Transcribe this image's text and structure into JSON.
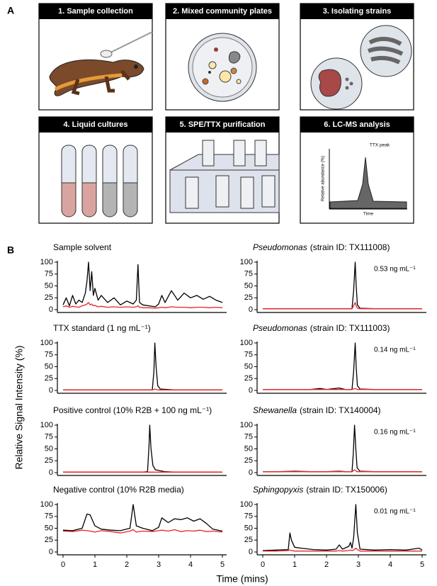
{
  "panel_a": {
    "label": "A",
    "steps": [
      "1. Sample collection",
      "2. Mixed community plates",
      "3. Isolating strains",
      "4. Liquid cultures",
      "5. SPE/TTX purification",
      "6. LC-MS analysis"
    ],
    "inset": {
      "y_label": "Relative abundance (%)",
      "peak_label": "TTX peak",
      "x_label": "Time"
    }
  },
  "panel_b": {
    "label": "B",
    "y_label": "Relative Signal Intensity (%)",
    "x_label": "Time (mins)"
  },
  "chart_data": [
    {
      "type": "line",
      "title": "Sample solvent",
      "x": [
        0,
        0.1,
        0.2,
        0.3,
        0.4,
        0.5,
        0.6,
        0.7,
        0.75,
        0.8,
        0.85,
        0.9,
        0.95,
        1.0,
        1.1,
        1.2,
        1.4,
        1.6,
        1.8,
        2.0,
        2.2,
        2.3,
        2.35,
        2.4,
        2.5,
        2.7,
        2.9,
        3.0,
        3.1,
        3.2,
        3.4,
        3.6,
        3.8,
        4.0,
        4.2,
        4.4,
        4.6,
        4.8,
        5.0
      ],
      "series": [
        {
          "color": "#000000",
          "values": [
            10,
            25,
            8,
            30,
            12,
            20,
            15,
            35,
            60,
            100,
            40,
            80,
            30,
            45,
            20,
            30,
            15,
            25,
            10,
            18,
            12,
            20,
            95,
            15,
            10,
            8,
            6,
            12,
            30,
            15,
            40,
            20,
            35,
            25,
            30,
            22,
            28,
            20,
            15
          ]
        },
        {
          "color": "#e8232a",
          "values": [
            6,
            8,
            5,
            7,
            6,
            5,
            8,
            10,
            12,
            15,
            10,
            12,
            8,
            9,
            6,
            7,
            5,
            6,
            5,
            6,
            5,
            6,
            8,
            5,
            4,
            4,
            3,
            4,
            5,
            4,
            6,
            5,
            5,
            4,
            5,
            5,
            4,
            5,
            4
          ]
        }
      ],
      "xlim": [
        0,
        5
      ],
      "ylim": [
        0,
        100
      ],
      "yticks": [
        0,
        25,
        50,
        75,
        100
      ]
    },
    {
      "type": "line",
      "title": "TTX standard (1 ng mL⁻¹)",
      "x": [
        0,
        0.5,
        1,
        1.5,
        2,
        2.5,
        2.8,
        2.85,
        2.88,
        2.92,
        2.97,
        3.05,
        3.5,
        4,
        4.5,
        5
      ],
      "series": [
        {
          "color": "#000000",
          "values": [
            1,
            1,
            1,
            1,
            1,
            1,
            1,
            40,
            100,
            50,
            10,
            3,
            1,
            1,
            1,
            1
          ]
        },
        {
          "color": "#e8232a",
          "values": [
            1,
            1,
            1,
            1,
            1,
            1,
            1,
            2,
            3,
            2,
            1,
            1,
            1,
            1,
            1,
            1
          ]
        }
      ],
      "xlim": [
        0,
        5
      ],
      "ylim": [
        0,
        100
      ],
      "yticks": [
        0,
        25,
        50,
        75,
        100
      ]
    },
    {
      "type": "line",
      "title": "Positive control (10% R2B + 100 ng mL⁻¹)",
      "x": [
        0,
        0.5,
        1,
        1.5,
        2,
        2.5,
        2.65,
        2.7,
        2.72,
        2.76,
        2.82,
        2.9,
        3.2,
        3.5,
        4,
        4.5,
        5
      ],
      "series": [
        {
          "color": "#000000",
          "values": [
            1,
            1,
            1,
            1,
            1,
            1,
            2,
            60,
            100,
            50,
            15,
            6,
            2,
            1,
            1,
            1,
            1
          ]
        },
        {
          "color": "#e8232a",
          "values": [
            1,
            1,
            1,
            1,
            1,
            1,
            1,
            1,
            1,
            1,
            1,
            1,
            1,
            1,
            1,
            1,
            1
          ]
        }
      ],
      "xlim": [
        0,
        5
      ],
      "ylim": [
        0,
        100
      ],
      "yticks": [
        0,
        25,
        50,
        75,
        100
      ]
    },
    {
      "type": "line",
      "title": "Negative control (10% R2B media)",
      "x": [
        0,
        0.3,
        0.6,
        0.75,
        0.85,
        1.0,
        1.2,
        1.5,
        1.8,
        2.1,
        2.2,
        2.3,
        2.5,
        2.8,
        3.0,
        3.1,
        3.3,
        3.5,
        3.7,
        3.9,
        4.1,
        4.3,
        4.5,
        4.7,
        5.0
      ],
      "series": [
        {
          "color": "#000000",
          "values": [
            46,
            45,
            50,
            80,
            78,
            55,
            48,
            46,
            45,
            50,
            100,
            55,
            50,
            45,
            52,
            72,
            62,
            70,
            68,
            72,
            65,
            70,
            60,
            48,
            44
          ]
        },
        {
          "color": "#e8232a",
          "values": [
            44,
            43,
            46,
            45,
            44,
            42,
            45,
            43,
            40,
            44,
            47,
            42,
            44,
            43,
            45,
            46,
            44,
            47,
            43,
            45,
            44,
            46,
            43,
            44,
            42
          ]
        }
      ],
      "xlim": [
        0,
        5
      ],
      "ylim": [
        0,
        100
      ],
      "yticks": [
        0,
        25,
        50,
        75,
        100
      ],
      "xticks": [
        0,
        1,
        2,
        3,
        4,
        5
      ]
    },
    {
      "type": "line",
      "title_italic": "Pseudomonas",
      "title": "(strain ID: TX111008)",
      "annotation": "0.53 ng mL⁻¹",
      "x": [
        0,
        0.5,
        1,
        1.5,
        2,
        2.5,
        2.8,
        2.85,
        2.9,
        2.93,
        2.97,
        3.05,
        3.5,
        4,
        4.5,
        5
      ],
      "series": [
        {
          "color": "#000000",
          "values": [
            2,
            2,
            2,
            2,
            2,
            2,
            2,
            40,
            100,
            50,
            10,
            3,
            2,
            2,
            2,
            2
          ]
        },
        {
          "color": "#e8232a",
          "values": [
            2,
            2,
            2,
            2,
            2,
            2,
            2,
            8,
            15,
            8,
            3,
            2,
            2,
            2,
            2,
            2
          ]
        }
      ],
      "xlim": [
        0,
        5
      ],
      "ylim": [
        0,
        100
      ],
      "yticks": [
        0,
        25,
        50,
        75,
        100
      ]
    },
    {
      "type": "line",
      "title_italic": "Pseudomonas",
      "title": "(strain ID: TX111003)",
      "annotation": "0.14 ng mL⁻¹",
      "x": [
        0,
        0.5,
        1,
        1.5,
        1.8,
        2,
        2.4,
        2.6,
        2.8,
        2.85,
        2.9,
        2.93,
        2.97,
        3.05,
        3.5,
        4,
        4.5,
        5
      ],
      "series": [
        {
          "color": "#000000",
          "values": [
            2,
            2,
            2,
            2,
            4,
            2,
            5,
            2,
            2,
            40,
            100,
            50,
            10,
            3,
            2,
            2,
            2,
            2
          ]
        },
        {
          "color": "#e8232a",
          "values": [
            2,
            2,
            2,
            2,
            2,
            2,
            2,
            2,
            2,
            3,
            4,
            3,
            2,
            2,
            2,
            2,
            2,
            2
          ]
        }
      ],
      "xlim": [
        0,
        5
      ],
      "ylim": [
        0,
        100
      ],
      "yticks": [
        0,
        25,
        50,
        75,
        100
      ]
    },
    {
      "type": "line",
      "title_italic": "Shewanella",
      "title": "(strain ID: TX140004)",
      "annotation": "0.16 ng mL⁻¹",
      "x": [
        0,
        0.5,
        1,
        1.5,
        2,
        2.4,
        2.6,
        2.8,
        2.84,
        2.88,
        2.92,
        2.96,
        3.05,
        3.5,
        4,
        4.5,
        5
      ],
      "series": [
        {
          "color": "#000000",
          "values": [
            2,
            2,
            3,
            2,
            2,
            3,
            2,
            2,
            40,
            100,
            50,
            10,
            3,
            2,
            2,
            2,
            2
          ]
        },
        {
          "color": "#e8232a",
          "values": [
            2,
            2,
            2,
            2,
            2,
            2,
            2,
            2,
            4,
            6,
            4,
            2,
            2,
            2,
            2,
            2,
            2
          ]
        }
      ],
      "xlim": [
        0,
        5
      ],
      "ylim": [
        0,
        100
      ],
      "yticks": [
        0,
        25,
        50,
        75,
        100
      ]
    },
    {
      "type": "line",
      "title_italic": "Sphingopyxis",
      "title": "(strain ID: TX150006)",
      "annotation": "0.01 ng mL⁻¹",
      "x": [
        0,
        0.4,
        0.8,
        0.85,
        0.9,
        1.0,
        1.2,
        1.6,
        2.0,
        2.3,
        2.4,
        2.5,
        2.7,
        2.75,
        2.8,
        2.85,
        2.92,
        2.97,
        3.05,
        3.5,
        4,
        4.5,
        4.9,
        5
      ],
      "series": [
        {
          "color": "#000000",
          "values": [
            3,
            4,
            5,
            40,
            25,
            10,
            8,
            5,
            4,
            6,
            15,
            6,
            12,
            20,
            8,
            30,
            100,
            40,
            6,
            4,
            5,
            4,
            8,
            4
          ]
        },
        {
          "color": "#e8232a",
          "values": [
            2,
            2,
            3,
            4,
            3,
            2,
            2,
            2,
            2,
            2,
            3,
            2,
            3,
            4,
            3,
            4,
            8,
            5,
            2,
            2,
            2,
            2,
            2,
            2
          ]
        }
      ],
      "xlim": [
        0,
        5
      ],
      "ylim": [
        0,
        100
      ],
      "yticks": [
        0,
        25,
        50,
        75,
        100
      ],
      "xticks": [
        0,
        1,
        2,
        3,
        4,
        5
      ]
    }
  ]
}
